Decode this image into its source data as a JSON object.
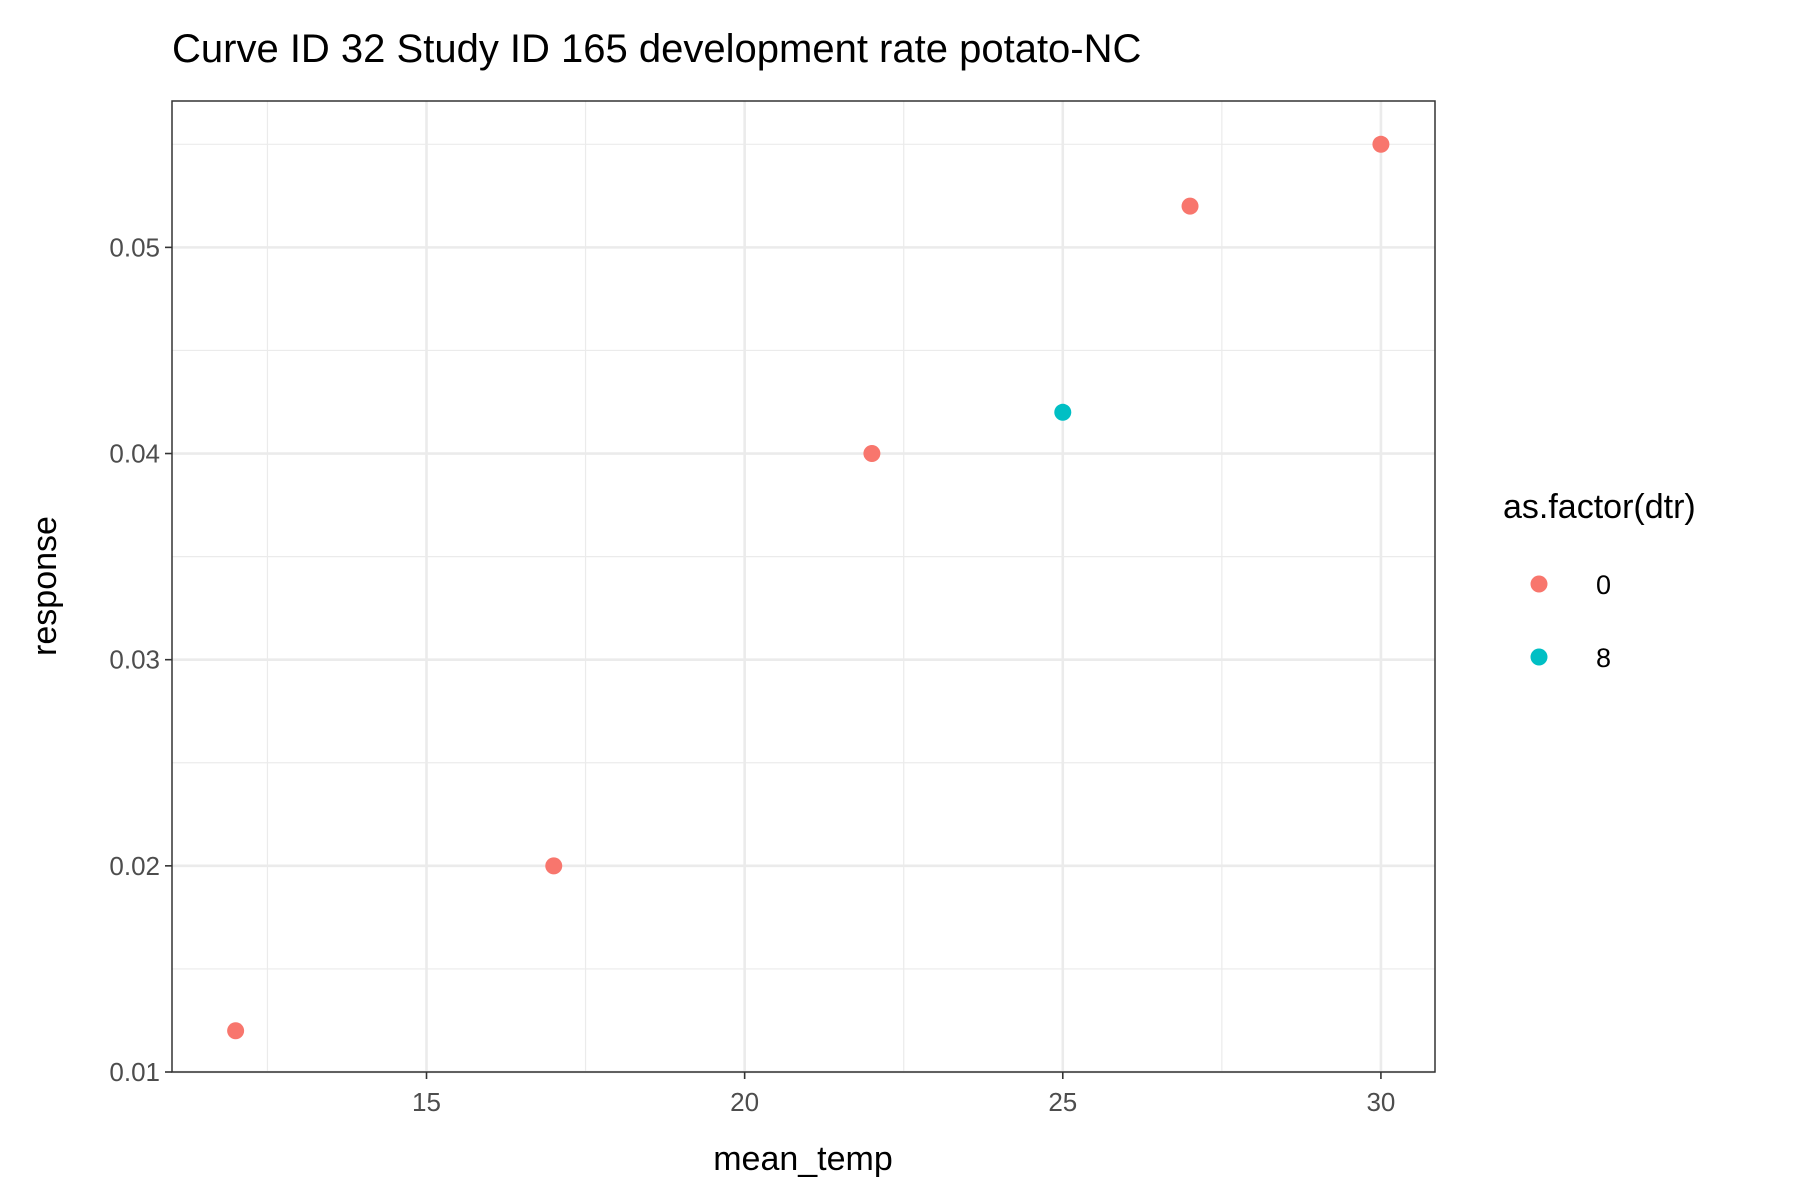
{
  "chart_data": {
    "type": "scatter",
    "title": "Curve ID 32 Study ID 165 development rate potato-NC",
    "xlabel": "mean_temp",
    "ylabel": "response",
    "xlim": [
      11.0,
      30.85
    ],
    "ylim": [
      0.01,
      0.0571
    ],
    "xticks": [
      15,
      20,
      25,
      30
    ],
    "xtick_labels": [
      "15",
      "20",
      "25",
      "30"
    ],
    "yticks": [
      0.01,
      0.02,
      0.03,
      0.04,
      0.05
    ],
    "ytick_labels": [
      "0.01",
      "0.02",
      "0.03",
      "0.04",
      "0.05"
    ],
    "grid": true,
    "legend": {
      "title": "as.factor(dtr)",
      "placement": "right",
      "entries": [
        {
          "label": "0",
          "color": "#F8766D"
        },
        {
          "label": "8",
          "color": "#00BFC4"
        }
      ]
    },
    "series": [
      {
        "name": "0",
        "color": "#F8766D",
        "points": [
          {
            "x": 12,
            "y": 0.012
          },
          {
            "x": 17,
            "y": 0.02
          },
          {
            "x": 22,
            "y": 0.04
          },
          {
            "x": 27,
            "y": 0.052
          },
          {
            "x": 30,
            "y": 0.055
          }
        ]
      },
      {
        "name": "8",
        "color": "#00BFC4",
        "points": [
          {
            "x": 25,
            "y": 0.042
          }
        ]
      }
    ]
  }
}
